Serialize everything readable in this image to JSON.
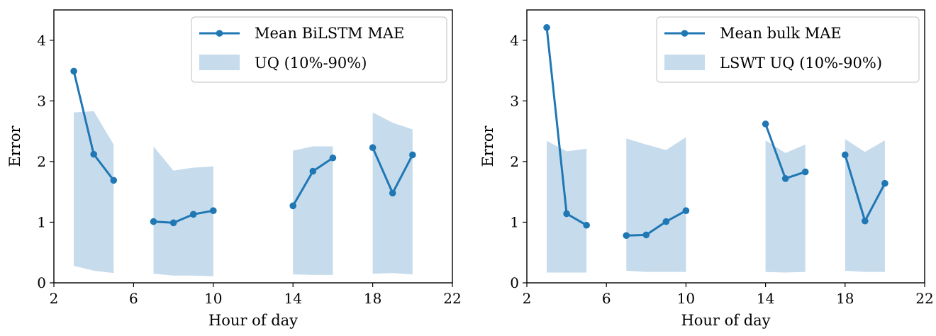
{
  "colors": {
    "line": "#1f77b4",
    "band": "#c6dbec",
    "legend_border": "#cccccc"
  },
  "chart_data": [
    {
      "type": "line",
      "xlabel": "Hour of day",
      "ylabel": "Error",
      "xlim": [
        2,
        22
      ],
      "ylim": [
        0,
        4.5
      ],
      "xticks": [
        2,
        6,
        10,
        14,
        18,
        22
      ],
      "yticks": [
        0,
        1,
        2,
        3,
        4
      ],
      "legend_position": "top-right",
      "series": [
        {
          "name": "Mean BiLSTM MAE",
          "segments": [
            {
              "x": [
                3,
                4,
                5
              ],
              "y": [
                3.49,
                2.12,
                1.69
              ]
            },
            {
              "x": [
                7,
                8,
                9,
                10
              ],
              "y": [
                1.01,
                0.99,
                1.13,
                1.19
              ]
            },
            {
              "x": [
                14,
                15,
                16
              ],
              "y": [
                1.27,
                1.84,
                2.06
              ]
            },
            {
              "x": [
                18,
                19,
                20
              ],
              "y": [
                2.23,
                1.48,
                2.11
              ]
            }
          ]
        }
      ],
      "band": {
        "name": "UQ (10%-90%)",
        "segments": [
          {
            "x": [
              3,
              4,
              5
            ],
            "low": [
              0.28,
              0.2,
              0.16
            ],
            "high": [
              2.81,
              2.83,
              2.28
            ]
          },
          {
            "x": [
              7,
              8,
              9,
              10
            ],
            "low": [
              0.15,
              0.12,
              0.12,
              0.11
            ],
            "high": [
              2.25,
              1.85,
              1.9,
              1.92
            ]
          },
          {
            "x": [
              14,
              15,
              16
            ],
            "low": [
              0.14,
              0.13,
              0.13
            ],
            "high": [
              2.18,
              2.25,
              2.25
            ]
          },
          {
            "x": [
              18,
              19,
              20
            ],
            "low": [
              0.15,
              0.16,
              0.14
            ],
            "high": [
              2.81,
              2.64,
              2.53
            ]
          }
        ]
      }
    },
    {
      "type": "line",
      "xlabel": "Hour of day",
      "ylabel": "Error",
      "xlim": [
        2,
        22
      ],
      "ylim": [
        0,
        4.5
      ],
      "xticks": [
        2,
        6,
        10,
        14,
        18,
        22
      ],
      "yticks": [
        0,
        1,
        2,
        3,
        4
      ],
      "legend_position": "top-right",
      "series": [
        {
          "name": "Mean bulk MAE",
          "segments": [
            {
              "x": [
                3,
                4,
                5
              ],
              "y": [
                4.21,
                1.14,
                0.95
              ]
            },
            {
              "x": [
                7,
                8,
                9,
                10
              ],
              "y": [
                0.78,
                0.79,
                1.01,
                1.19
              ]
            },
            {
              "x": [
                14,
                15,
                16
              ],
              "y": [
                2.62,
                1.72,
                1.83
              ]
            },
            {
              "x": [
                18,
                19,
                20
              ],
              "y": [
                2.11,
                1.02,
                1.64
              ]
            }
          ]
        }
      ],
      "band": {
        "name": "LSWT UQ (10%-90%)",
        "segments": [
          {
            "x": [
              3,
              4,
              5
            ],
            "low": [
              0.17,
              0.17,
              0.17
            ],
            "high": [
              2.34,
              2.17,
              2.21
            ]
          },
          {
            "x": [
              7,
              8,
              9,
              10
            ],
            "low": [
              0.2,
              0.18,
              0.18,
              0.18
            ],
            "high": [
              2.38,
              2.28,
              2.19,
              2.4
            ]
          },
          {
            "x": [
              14,
              15,
              16
            ],
            "low": [
              0.18,
              0.17,
              0.18
            ],
            "high": [
              2.35,
              2.14,
              2.28
            ]
          },
          {
            "x": [
              18,
              19,
              20
            ],
            "low": [
              0.2,
              0.18,
              0.18
            ],
            "high": [
              2.37,
              2.16,
              2.35
            ]
          }
        ]
      }
    }
  ]
}
